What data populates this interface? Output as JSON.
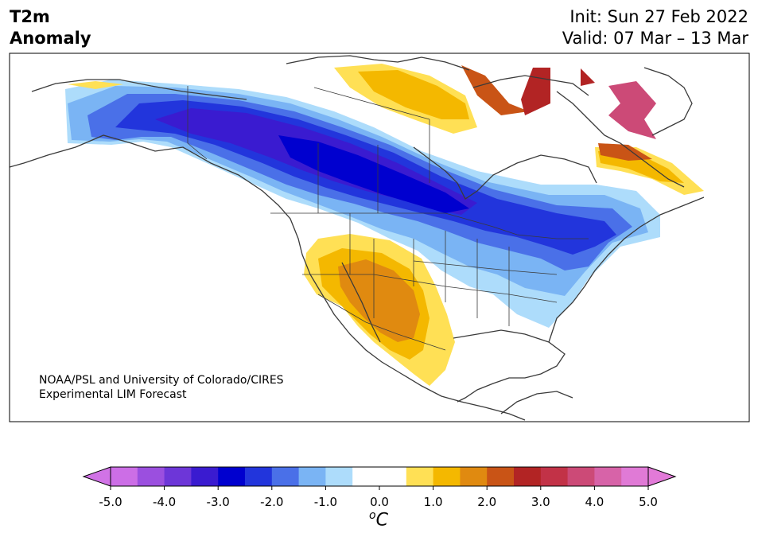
{
  "header": {
    "title_line1": "T2m",
    "title_line2": "Anomaly",
    "init": "Init: Sun 27 Feb 2022",
    "valid": "Valid: 07 Mar – 13 Mar"
  },
  "credit": {
    "line1": "NOAA/PSL and University of Colorado/CIRES",
    "line2": "Experimental LIM Forecast"
  },
  "colorbar": {
    "unit_sup": "o",
    "unit_base": "C",
    "ticks": [
      "-5.0",
      "-4.0",
      "-3.0",
      "-2.0",
      "-1.0",
      "0.0",
      "1.0",
      "2.0",
      "3.0",
      "4.0",
      "5.0"
    ],
    "colors": [
      "#cc6ee6",
      "#9b4fdf",
      "#6d36d8",
      "#3a1bd0",
      "#0000cf",
      "#2235dc",
      "#4a70e8",
      "#7ab4f4",
      "#addcfb",
      "#ffffff",
      "#ffffff",
      "#ffe055",
      "#f4b800",
      "#e08a10",
      "#c95416",
      "#b22424",
      "#c23247",
      "#cc4a77",
      "#d763a8",
      "#e07ad6"
    ],
    "under_color": "#d173e6",
    "over_color": "#e27ad8"
  },
  "colors": {
    "land_outline": "#3a3a3a",
    "frame": "#000000"
  }
}
